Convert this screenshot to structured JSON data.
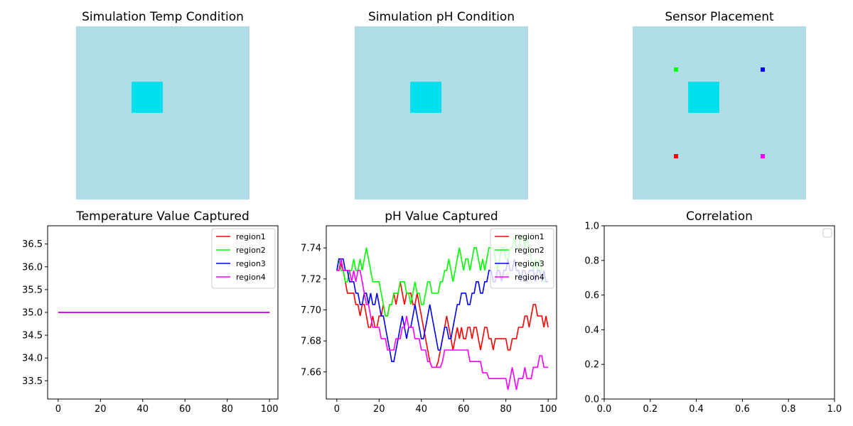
{
  "colors": {
    "field": "#b0dce8",
    "hot": "#00e0ec",
    "region1": "#ff0000",
    "region2": "#00ff00",
    "region3": "#0000ff",
    "region4": "#ff00ff"
  },
  "chart_data": [
    {
      "type": "heatmap",
      "title": "Simulation Temp Condition",
      "grid_size": 100,
      "hot_block": {
        "x": [
          32,
          50
        ],
        "y": [
          32,
          50
        ]
      }
    },
    {
      "type": "heatmap",
      "title": "Simulation pH Condition",
      "grid_size": 100,
      "hot_block": {
        "x": [
          32,
          50
        ],
        "y": [
          32,
          50
        ]
      }
    },
    {
      "type": "heatmap",
      "title": "Sensor Placement",
      "grid_size": 100,
      "hot_block": {
        "x": [
          32,
          50
        ],
        "y": [
          32,
          50
        ]
      },
      "sensors": [
        {
          "region": "region1",
          "x": 25,
          "y": 75
        },
        {
          "region": "region2",
          "x": 25,
          "y": 25
        },
        {
          "region": "region3",
          "x": 75,
          "y": 25
        },
        {
          "region": "region4",
          "x": 75,
          "y": 75
        }
      ]
    },
    {
      "type": "line",
      "title": "Temperature Value Captured",
      "xlim": [
        -5,
        104
      ],
      "ylim": [
        33.1,
        36.9
      ],
      "xticks": [
        "0",
        "20",
        "40",
        "60",
        "80",
        "100"
      ],
      "yticks": [
        "33.5",
        "34.0",
        "34.5",
        "35.0",
        "35.5",
        "36.0",
        "36.5"
      ],
      "legend": "top-right",
      "series": [
        {
          "name": "region1",
          "x": [
            0,
            100
          ],
          "values": [
            35.0,
            35.0
          ]
        },
        {
          "name": "region2",
          "x": [
            0,
            100
          ],
          "values": [
            35.0,
            35.0
          ]
        },
        {
          "name": "region3",
          "x": [
            0,
            100
          ],
          "values": [
            35.0,
            35.0
          ]
        },
        {
          "name": "region4",
          "x": [
            0,
            100
          ],
          "values": [
            35.0,
            35.0
          ]
        }
      ]
    },
    {
      "type": "line",
      "title": "pH Value Captured",
      "xlim": [
        -5,
        104
      ],
      "ylim": [
        7.6425,
        7.7543
      ],
      "xticks": [
        "0",
        "20",
        "40",
        "60",
        "80",
        "100"
      ],
      "yticks": [
        "7.66",
        "7.68",
        "7.70",
        "7.72",
        "7.74"
      ],
      "legend": "top-right",
      "series": [
        {
          "name": "region1",
          "values": [
            7.7255,
            7.7255,
            7.7292,
            7.7255,
            7.7182,
            7.7108,
            7.7108,
            7.7108,
            7.7108,
            7.7035,
            7.7035,
            7.6961,
            7.7035,
            7.7035,
            7.6961,
            7.6888,
            7.6888,
            7.6961,
            7.6888,
            7.6888,
            7.6961,
            7.6961,
            7.7035,
            7.6961,
            7.6961,
            7.7035,
            7.7035,
            7.7108,
            7.7035,
            7.7108,
            7.7182,
            7.7108,
            7.7035,
            7.7108,
            7.7108,
            7.7108,
            7.7035,
            7.7035,
            7.7108,
            7.7035,
            7.6961,
            7.6888,
            7.6814,
            7.6741,
            7.6667,
            7.663,
            7.663,
            7.663,
            7.6667,
            7.6741,
            7.6814,
            7.6888,
            7.6961,
            7.6888,
            7.6814,
            7.6741,
            7.6814,
            7.6888,
            7.6814,
            7.6888,
            7.6814,
            7.6814,
            7.6888,
            7.6888,
            7.6814,
            7.6888,
            7.6888,
            7.6814,
            7.6741,
            7.6814,
            7.6888,
            7.6888,
            7.6814,
            7.6814,
            7.6741,
            7.6814,
            7.6814,
            7.6814,
            7.6814,
            7.6814,
            7.6814,
            7.6741,
            7.6741,
            7.6814,
            7.6814,
            7.6814,
            7.6888,
            7.6888,
            7.6888,
            7.6961,
            7.6961,
            7.6888,
            7.6961,
            7.7035,
            7.7035,
            7.6961,
            7.6961,
            7.6961,
            7.6888,
            7.6961,
            7.6888
          ]
        },
        {
          "name": "region2",
          "values": [
            7.7255,
            7.7329,
            7.7255,
            7.7255,
            7.7182,
            7.7182,
            7.7255,
            7.7255,
            7.7329,
            7.7255,
            7.7255,
            7.7329,
            7.7255,
            7.7329,
            7.7402,
            7.7329,
            7.7255,
            7.7182,
            7.7182,
            7.7182,
            7.7182,
            7.7108,
            7.7035,
            7.6961,
            7.6961,
            7.7035,
            7.7035,
            7.7108,
            7.7108,
            7.7108,
            7.7182,
            7.7182,
            7.7182,
            7.7108,
            7.7108,
            7.7035,
            7.7108,
            7.7182,
            7.7108,
            7.7108,
            7.7035,
            7.7035,
            7.7108,
            7.7182,
            7.7182,
            7.7108,
            7.7108,
            7.7108,
            7.7108,
            7.7182,
            7.7182,
            7.7255,
            7.7255,
            7.7329,
            7.7255,
            7.7182,
            7.7255,
            7.7329,
            7.7402,
            7.7329,
            7.7255,
            7.7329,
            7.7329,
            7.7255,
            7.7329,
            7.7402,
            7.7402,
            7.7329,
            7.7255,
            7.7329,
            7.7255,
            7.7329,
            7.7402,
            7.7402,
            7.7402,
            7.7329,
            7.7255,
            7.7329,
            7.7402,
            7.7402,
            7.7329,
            7.7329,
            7.7402,
            7.7402,
            7.7476,
            7.7402,
            7.7402,
            7.7476,
            7.7476,
            7.7402,
            7.7476,
            7.7402,
            7.7329,
            7.7255,
            7.7329,
            7.7255,
            7.7329,
            7.7255,
            7.7182,
            7.7182,
            7.7182
          ]
        },
        {
          "name": "region3",
          "values": [
            7.7255,
            7.7329,
            7.7329,
            7.7329,
            7.7255,
            7.7255,
            7.7182,
            7.7182,
            7.7182,
            7.7108,
            7.7108,
            7.7035,
            7.7035,
            7.7108,
            7.7108,
            7.7035,
            7.7108,
            7.7035,
            7.7035,
            7.7108,
            7.7035,
            7.6961,
            7.6961,
            7.6888,
            7.6814,
            7.6741,
            7.6667,
            7.6667,
            7.6741,
            7.6814,
            7.6888,
            7.6961,
            7.6888,
            7.6814,
            7.6888,
            7.6888,
            7.6961,
            7.7035,
            7.6961,
            7.6888,
            7.6814,
            7.6814,
            7.6888,
            7.6961,
            7.7035,
            7.6961,
            7.6888,
            7.6814,
            7.6741,
            7.6741,
            7.6814,
            7.6888,
            7.6888,
            7.6814,
            7.6814,
            7.6888,
            7.6961,
            7.7035,
            7.7035,
            7.7108,
            7.7108,
            7.7108,
            7.7035,
            7.7035,
            7.7108,
            7.7108,
            7.7182,
            7.7182,
            7.7108,
            7.7108,
            7.7182,
            7.7182,
            7.7255,
            7.7255,
            7.7182,
            7.7182,
            7.7255,
            7.7255,
            7.7182,
            7.7255,
            7.7255,
            7.7329,
            7.7255,
            7.7255,
            7.7329,
            7.7255,
            7.7255,
            7.7182,
            7.7255,
            7.7255,
            7.7182,
            7.7255,
            7.7255,
            7.7255,
            7.7182,
            7.7255,
            7.7255,
            7.7182,
            7.7255,
            7.7182,
            7.7182
          ]
        },
        {
          "name": "region4",
          "values": [
            7.7255,
            7.7255,
            7.7329,
            7.7255,
            7.7255,
            7.7255,
            7.7255,
            7.7182,
            7.7255,
            7.7182,
            7.7255,
            7.7255,
            7.7182,
            7.7108,
            7.7035,
            7.7035,
            7.6961,
            7.6888,
            7.6888,
            7.6888,
            7.6888,
            7.6814,
            7.6814,
            7.6814,
            7.6741,
            7.6741,
            7.6741,
            7.6741,
            7.6814,
            7.6814,
            7.6814,
            7.6888,
            7.6888,
            7.6961,
            7.6888,
            7.6888,
            7.6888,
            7.6814,
            7.6814,
            7.6814,
            7.6741,
            7.6741,
            7.6741,
            7.6667,
            7.6667,
            7.663,
            7.663,
            7.663,
            7.663,
            7.663,
            7.6667,
            7.6741,
            7.6741,
            7.6741,
            7.6741,
            7.6741,
            7.6741,
            7.6741,
            7.6741,
            7.6741,
            7.6741,
            7.6741,
            7.6741,
            7.6667,
            7.6667,
            7.6667,
            7.6667,
            7.6667,
            7.6667,
            7.6594,
            7.6594,
            7.6594,
            7.6557,
            7.6557,
            7.6557,
            7.6557,
            7.6557,
            7.6557,
            7.6557,
            7.6557,
            7.6557,
            7.6484,
            7.6557,
            7.663,
            7.6557,
            7.6484,
            7.6557,
            7.6557,
            7.6557,
            7.663,
            7.6557,
            7.6557,
            7.6557,
            7.663,
            7.663,
            7.663,
            7.6704,
            7.6704,
            7.663,
            7.663,
            7.663
          ]
        }
      ]
    },
    {
      "type": "line",
      "title": "Correlation",
      "xlim": [
        0,
        1
      ],
      "ylim": [
        0,
        1
      ],
      "xticks": [
        "0.0",
        "0.2",
        "0.4",
        "0.6",
        "0.8",
        "1.0"
      ],
      "yticks": [
        "0.0",
        "0.2",
        "0.4",
        "0.6",
        "0.8",
        "1.0"
      ],
      "legend": "top-right",
      "series": []
    }
  ]
}
